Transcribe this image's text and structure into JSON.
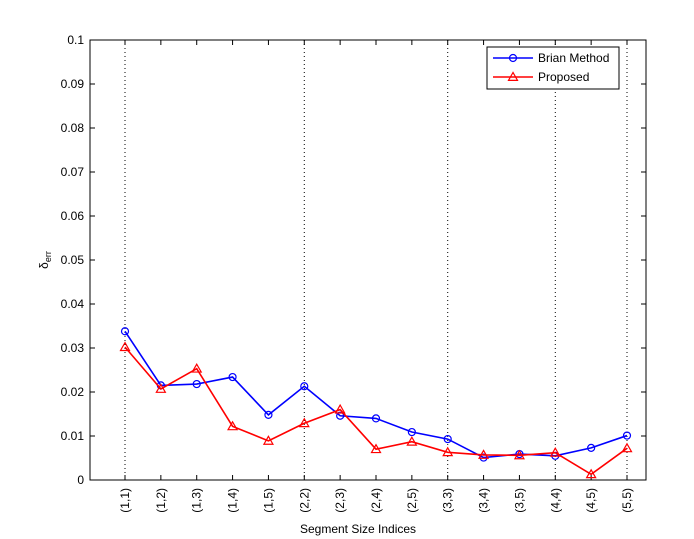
{
  "chart_data": {
    "type": "line",
    "title": "",
    "xlabel": "Segment Size Indices",
    "ylabel": "δ",
    "ylabel_subscript": "err",
    "categories": [
      "(1,1)",
      "(1,2)",
      "(1,3)",
      "(1,4)",
      "(1,5)",
      "(2,2)",
      "(2,3)",
      "(2,4)",
      "(2,5)",
      "(3,3)",
      "(3,4)",
      "(3,5)",
      "(4,4)",
      "(4,5)",
      "(5,5)"
    ],
    "ylim": [
      0,
      0.1
    ],
    "yticks": [
      "0",
      "0.01",
      "0.02",
      "0.03",
      "0.04",
      "0.05",
      "0.06",
      "0.07",
      "0.08",
      "0.09",
      "0.1"
    ],
    "vertical_dotted_lines_at": [
      "(1,1)",
      "(2,2)",
      "(3,3)",
      "(4,4)",
      "(5,5)"
    ],
    "legend_position": "top-right",
    "series": [
      {
        "name": "Brian Method",
        "color": "#0000ff",
        "marker": "circle",
        "values": [
          0.0338,
          0.0215,
          0.0218,
          0.0234,
          0.0148,
          0.0213,
          0.0146,
          0.014,
          0.0109,
          0.0093,
          0.0051,
          0.0059,
          0.0055,
          0.0073,
          0.0101
        ]
      },
      {
        "name": "Proposed",
        "color": "#ff0000",
        "marker": "triangle",
        "values": [
          0.0302,
          0.0207,
          0.0253,
          0.0122,
          0.0089,
          0.0129,
          0.016,
          0.007,
          0.0087,
          0.0063,
          0.0057,
          0.0056,
          0.0062,
          0.0013,
          0.0072
        ]
      }
    ]
  }
}
